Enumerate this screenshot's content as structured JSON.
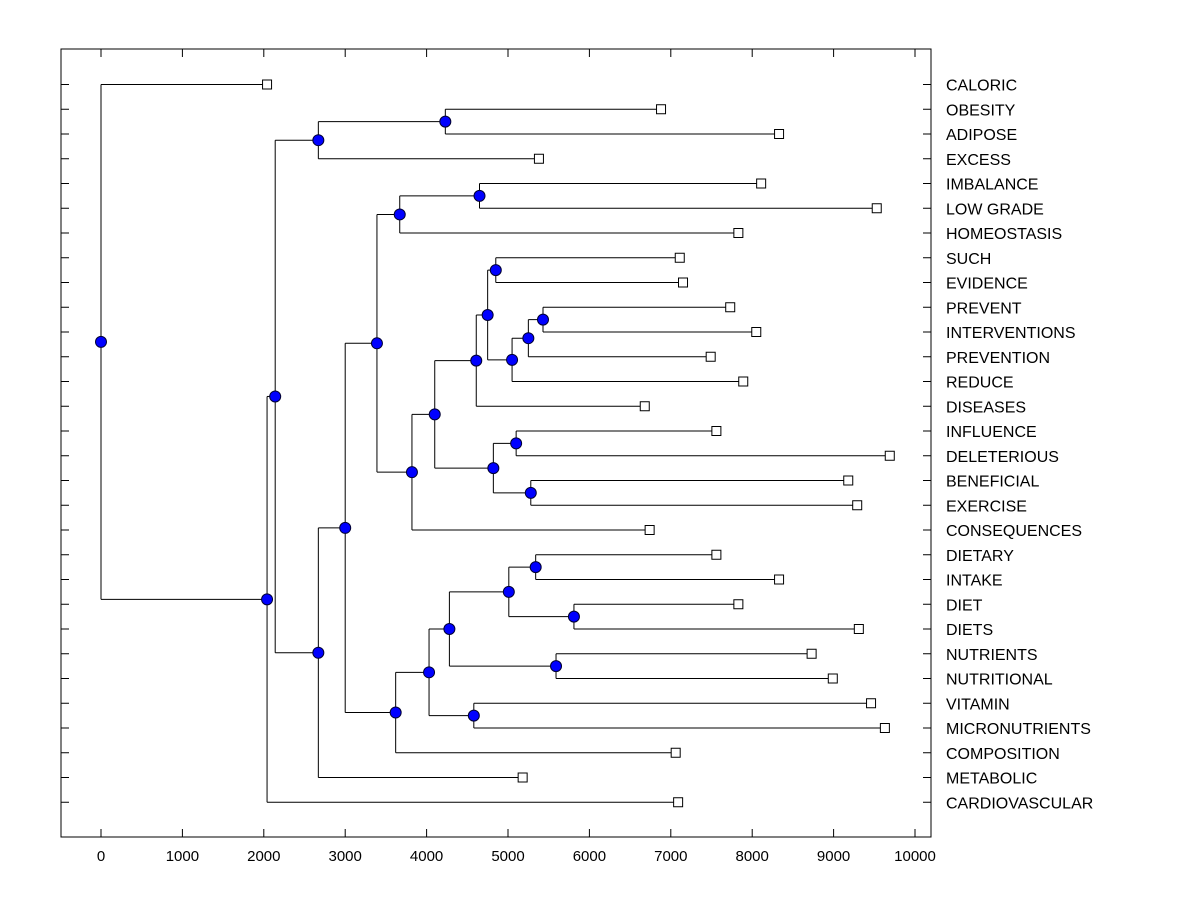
{
  "chart_data": {
    "type": "dendrogram",
    "title": "",
    "xlabel": "",
    "ylabel": "",
    "xlim": [
      -500,
      10200
    ],
    "xticks": [
      0,
      1000,
      2000,
      3000,
      4000,
      5000,
      6000,
      7000,
      8000,
      9000,
      10000
    ],
    "xtick_labels": [
      "0",
      "1000",
      "2000",
      "3000",
      "4000",
      "5000",
      "6000",
      "7000",
      "8000",
      "9000",
      "10000"
    ],
    "grid": false,
    "node_color": "#0000ff",
    "leaf_marker": "open-square",
    "leaves": [
      {
        "label": "CALORIC",
        "value": 2040
      },
      {
        "label": "OBESITY",
        "value": 6880
      },
      {
        "label": "ADIPOSE",
        "value": 8330
      },
      {
        "label": "EXCESS",
        "value": 5380
      },
      {
        "label": "IMBALANCE",
        "value": 8110
      },
      {
        "label": "LOW GRADE",
        "value": 9530
      },
      {
        "label": "HOMEOSTASIS",
        "value": 7830
      },
      {
        "label": "SUCH",
        "value": 7110
      },
      {
        "label": "EVIDENCE",
        "value": 7150
      },
      {
        "label": "PREVENT",
        "value": 7730
      },
      {
        "label": "INTERVENTIONS",
        "value": 8050
      },
      {
        "label": "PREVENTION",
        "value": 7490
      },
      {
        "label": "REDUCE",
        "value": 7890
      },
      {
        "label": "DISEASES",
        "value": 6680
      },
      {
        "label": "INFLUENCE",
        "value": 7560
      },
      {
        "label": "DELETERIOUS",
        "value": 9690
      },
      {
        "label": "BENEFICIAL",
        "value": 9180
      },
      {
        "label": "EXERCISE",
        "value": 9290
      },
      {
        "label": "CONSEQUENCES",
        "value": 6740
      },
      {
        "label": "DIETARY",
        "value": 7560
      },
      {
        "label": "INTAKE",
        "value": 8330
      },
      {
        "label": "DIET",
        "value": 7830
      },
      {
        "label": "DIETS",
        "value": 9310
      },
      {
        "label": "NUTRIENTS",
        "value": 8730
      },
      {
        "label": "NUTRITIONAL",
        "value": 8990
      },
      {
        "label": "VITAMIN",
        "value": 9460
      },
      {
        "label": "MICRONUTRIENTS",
        "value": 9630
      },
      {
        "label": "COMPOSITION",
        "value": 7060
      },
      {
        "label": "METABOLIC",
        "value": 5180
      },
      {
        "label": "CARDIOVASCULAR",
        "value": 7090
      }
    ],
    "tree": {
      "value": 0,
      "children": [
        "CALORIC",
        {
          "value": 2040,
          "children": [
            {
              "value": 2140,
              "children": [
                {
                  "value": 2670,
                  "children": [
                    {
                      "value": 4230,
                      "children": [
                        "OBESITY",
                        "ADIPOSE"
                      ]
                    },
                    "EXCESS"
                  ]
                },
                {
                  "value": 2670,
                  "children": [
                    {
                      "value": 3000,
                      "children": [
                        {
                          "value": 3390,
                          "children": [
                            {
                              "value": 3670,
                              "children": [
                                {
                                  "value": 4650,
                                  "children": [
                                    "IMBALANCE",
                                    "LOW GRADE"
                                  ]
                                },
                                "HOMEOSTASIS"
                              ]
                            },
                            {
                              "value": 3820,
                              "children": [
                                {
                                  "value": 4100,
                                  "children": [
                                    {
                                      "value": 4610,
                                      "children": [
                                        {
                                          "value": 4750,
                                          "children": [
                                            {
                                              "value": 4850,
                                              "children": [
                                                "SUCH",
                                                "EVIDENCE"
                                              ]
                                            },
                                            {
                                              "value": 5050,
                                              "children": [
                                                {
                                                  "value": 5250,
                                                  "children": [
                                                    {
                                                      "value": 5430,
                                                      "children": [
                                                        "PREVENT",
                                                        "INTERVENTIONS"
                                                      ]
                                                    },
                                                    "PREVENTION"
                                                  ]
                                                },
                                                "REDUCE"
                                              ]
                                            }
                                          ]
                                        },
                                        "DISEASES"
                                      ]
                                    },
                                    {
                                      "value": 4820,
                                      "children": [
                                        {
                                          "value": 5100,
                                          "children": [
                                            "INFLUENCE",
                                            "DELETERIOUS"
                                          ]
                                        },
                                        {
                                          "value": 5280,
                                          "children": [
                                            "BENEFICIAL",
                                            "EXERCISE"
                                          ]
                                        }
                                      ]
                                    }
                                  ]
                                },
                                "CONSEQUENCES"
                              ]
                            }
                          ]
                        },
                        {
                          "value": 3620,
                          "children": [
                            {
                              "value": 4030,
                              "children": [
                                {
                                  "value": 4280,
                                  "children": [
                                    {
                                      "value": 5010,
                                      "children": [
                                        {
                                          "value": 5340,
                                          "children": [
                                            "DIETARY",
                                            "INTAKE"
                                          ]
                                        },
                                        {
                                          "value": 5810,
                                          "children": [
                                            "DIET",
                                            "DIETS"
                                          ]
                                        }
                                      ]
                                    },
                                    {
                                      "value": 5590,
                                      "children": [
                                        "NUTRIENTS",
                                        "NUTRITIONAL"
                                      ]
                                    }
                                  ]
                                },
                                {
                                  "value": 4580,
                                  "children": [
                                    "VITAMIN",
                                    "MICRONUTRIENTS"
                                  ]
                                }
                              ]
                            },
                            "COMPOSITION"
                          ]
                        }
                      ]
                    },
                    "METABOLIC"
                  ]
                }
              ]
            },
            "CARDIOVASCULAR"
          ]
        }
      ]
    }
  }
}
